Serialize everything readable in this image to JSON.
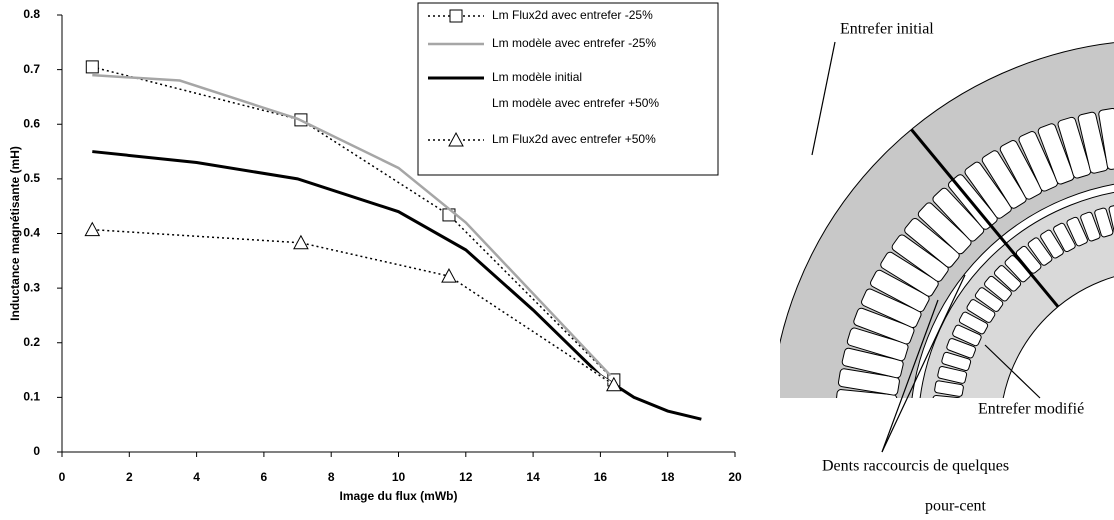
{
  "chart_data": {
    "type": "line",
    "xlabel": "Image du flux (mWb)",
    "ylabel": "Inductance magnétisante (mH)",
    "xlim": [
      0,
      20
    ],
    "xticks": [
      0,
      2,
      4,
      6,
      8,
      10,
      12,
      14,
      16,
      18,
      20
    ],
    "ylim": [
      0,
      0.8
    ],
    "yticks": [
      0,
      0.1,
      0.2,
      0.3,
      0.4,
      0.5,
      0.6,
      0.7,
      0.8
    ],
    "legend": "upper right",
    "series": [
      {
        "name": "Lm Flux2d avec entrefer -25%",
        "color": "#000000",
        "line_style": "dotted",
        "marker": "square",
        "x": [
          0.9,
          7.1,
          11.5,
          16.4
        ],
        "values": [
          0.705,
          0.608,
          0.434,
          0.132
        ]
      },
      {
        "name": "Lm modèle avec entrefer -25%",
        "color": "#a6a6a6",
        "line_style": "solid",
        "marker": "none",
        "x": [
          0.9,
          3.5,
          7,
          10,
          12,
          14,
          16.3
        ],
        "values": [
          0.69,
          0.68,
          0.61,
          0.52,
          0.42,
          0.29,
          0.14
        ]
      },
      {
        "name": "Lm modèle initial",
        "color": "#000000",
        "line_style": "solid",
        "marker": "none",
        "x": [
          0.9,
          4,
          7,
          10,
          12,
          14,
          16,
          17,
          18,
          19
        ],
        "values": [
          0.55,
          0.53,
          0.5,
          0.44,
          0.37,
          0.26,
          0.14,
          0.1,
          0.075,
          0.06
        ]
      },
      {
        "name": "Lm modèle avec entrefer +50%",
        "color": "#ffffff",
        "line_style": "solid",
        "marker": "none",
        "x": [
          0.9,
          7.1,
          11.5,
          16.4
        ],
        "values": [
          0.407,
          0.383,
          0.322,
          0.123
        ]
      },
      {
        "name": "Lm Flux2d avec entrefer +50%",
        "color": "#000000",
        "line_style": "dotted",
        "marker": "triangle",
        "x": [
          0.9,
          7.1,
          11.5,
          16.4
        ],
        "values": [
          0.407,
          0.383,
          0.322,
          0.123
        ]
      }
    ]
  },
  "diagram": {
    "labels": [
      "Entrefer initial",
      "Entrefer modifié",
      "Dents raccourcis de quelques",
      "pour-cent"
    ]
  }
}
